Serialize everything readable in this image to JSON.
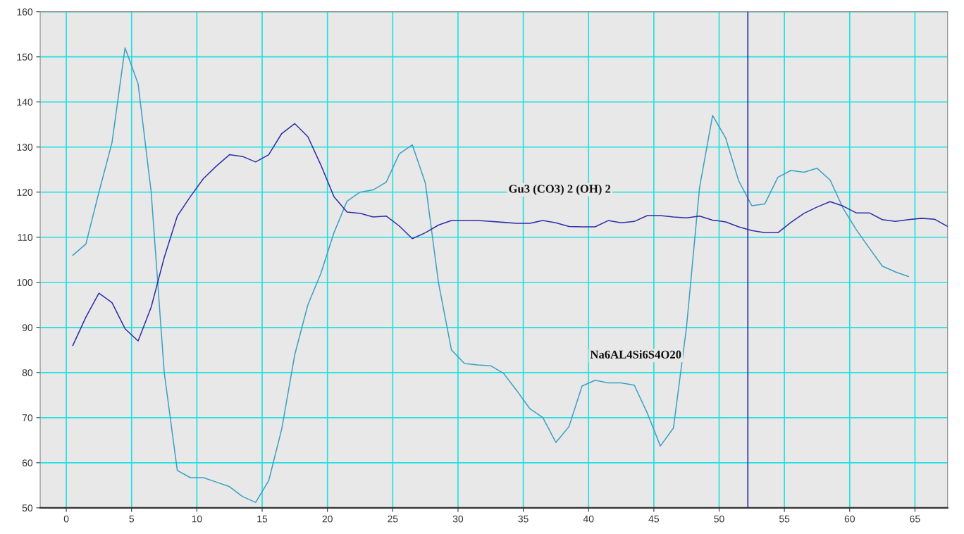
{
  "chart_data": {
    "type": "line",
    "xlim": [
      -2,
      67.5
    ],
    "xticks": [
      0,
      5,
      10,
      15,
      20,
      25,
      30,
      35,
      40,
      45,
      50,
      55,
      60,
      65
    ],
    "ylim": [
      50,
      160
    ],
    "yticks": [
      50,
      60,
      70,
      80,
      90,
      100,
      110,
      120,
      130,
      140,
      150,
      160
    ],
    "grid": true,
    "marker": "none",
    "line_style": "solid",
    "series": [
      {
        "color": "#3aa0c4",
        "x": [
          0.5,
          1.5,
          2.5,
          3.5,
          4.5,
          5.5,
          6.5,
          7.5,
          8.5,
          9.5,
          10.5,
          11.5,
          12.5,
          13.5,
          14.5,
          15.5,
          16.5,
          17.5,
          18.5,
          19.5,
          20.5,
          21.5,
          22.5,
          23.5,
          24.5,
          25.5,
          26.5,
          27.5,
          28.5,
          29.5,
          30.5,
          31.5,
          32.5,
          33.5,
          34.5,
          35.5,
          36.5,
          37.5,
          38.5,
          39.5,
          40.5,
          41.5,
          42.5,
          43.5,
          44.5,
          45.5,
          46.5,
          47.5,
          48.5,
          49.5,
          50.5,
          51.5,
          52.5,
          53.5,
          54.5,
          55.5,
          56.5,
          57.5,
          58.5,
          59.5,
          60.5,
          61.5,
          62.5,
          63.5,
          64.5
        ],
        "values": [
          106,
          108.5,
          120,
          131,
          152,
          144,
          120,
          80,
          58.3,
          56.7,
          56.7,
          55.7,
          54.7,
          52.5,
          51.2,
          56,
          67.5,
          84,
          95,
          102,
          111,
          118,
          120,
          120.5,
          122.2,
          128.5,
          130.5,
          122,
          100,
          85,
          82,
          81.7,
          81.5,
          79.8,
          76,
          72,
          70,
          64.5,
          68,
          77,
          78.3,
          77.7,
          77.7,
          77.2,
          71,
          63.7,
          67.7,
          90,
          121,
          137,
          132,
          122.5,
          117,
          117.4,
          123.3,
          124.8,
          124.4,
          125.3,
          122.7,
          116.4,
          111.7,
          107.6,
          103.6,
          102.3,
          101.3
        ]
      },
      {
        "color": "#2e2ea8",
        "x": [
          0.5,
          1.5,
          2.5,
          3.5,
          4.5,
          5.5,
          6.5,
          7.5,
          8.5,
          9.5,
          10.5,
          11.5,
          12.5,
          13.5,
          14.5,
          15.5,
          16.5,
          17.5,
          18.5,
          19.5,
          20.5,
          21.5,
          22.5,
          23.5,
          24.5,
          25.5,
          26.5,
          27.5,
          28.5,
          29.5,
          30.5,
          31.5,
          32.5,
          33.5,
          34.5,
          35.5,
          36.5,
          37.5,
          38.5,
          39.5,
          40.5,
          41.5,
          42.5,
          43.5,
          44.5,
          45.5,
          46.5,
          47.5,
          48.5,
          49.5,
          50.5,
          51.5,
          52.5,
          53.5,
          54.5,
          55.5,
          56.5,
          57.5,
          58.5,
          59.5,
          60.5,
          61.5,
          62.5,
          63.5,
          64.5,
          65.5,
          66.5,
          67.5
        ],
        "values": [
          86,
          92.3,
          97.6,
          95.5,
          89.7,
          87,
          94.5,
          105.5,
          114.7,
          119,
          123,
          125.8,
          128.3,
          127.9,
          126.7,
          128.3,
          133,
          135.2,
          132.3,
          126,
          119,
          115.6,
          115.3,
          114.5,
          114.7,
          112.5,
          109.7,
          111,
          112.7,
          113.7,
          113.7,
          113.7,
          113.5,
          113.3,
          113.1,
          113.1,
          113.7,
          113.2,
          112.4,
          112.3,
          112.3,
          113.7,
          113.2,
          113.5,
          114.8,
          114.8,
          114.5,
          114.3,
          114.7,
          113.8,
          113.4,
          112.3,
          111.5,
          111,
          111,
          113.3,
          115.3,
          116.7,
          117.9,
          116.9,
          115.4,
          115.4,
          113.9,
          113.5,
          113.9,
          114.2,
          114,
          112.4
        ]
      }
    ],
    "ref_lines": [
      {
        "axis": "x",
        "value": 52.2,
        "color": "#2e2ea8"
      }
    ],
    "annotations": [
      "Gu3 (CO3) 2 (OH) 2",
      "Na6AL4Si6S4O20"
    ]
  }
}
